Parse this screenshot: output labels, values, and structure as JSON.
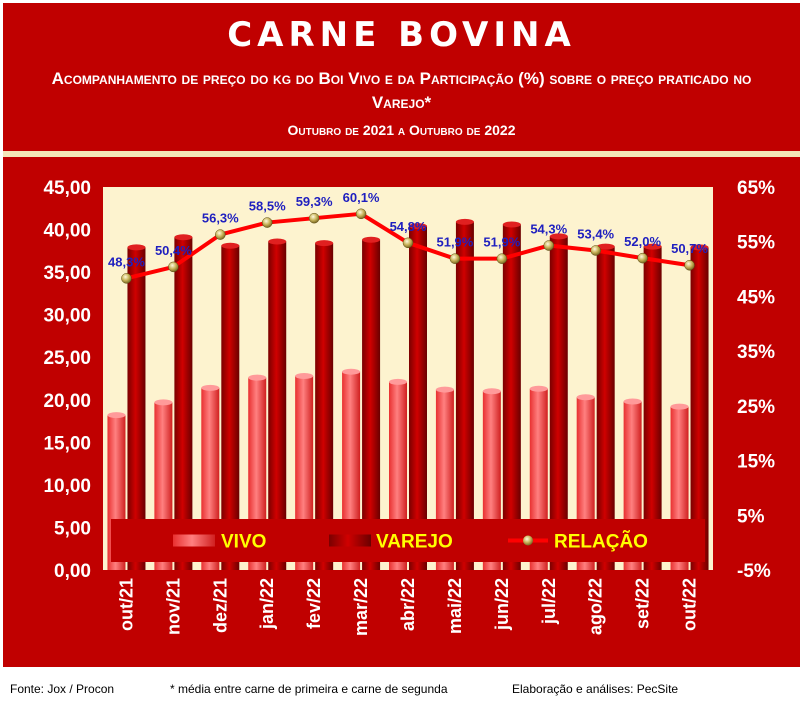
{
  "header": {
    "title": "CARNE BOVINA",
    "subtitle": "Acompanhamento de preço do kg do Boi Vivo e da Participação (%) sobre o preço praticado no Varejo*",
    "period": "Outubro de 2021 a Outubro de 2022"
  },
  "footer": {
    "source": "Fonte: Jox / Procon",
    "note": "* média entre carne de primeira e carne de segunda",
    "credit": "Elaboração e análises: PecSite"
  },
  "colors": {
    "background": "#c00000",
    "plot_area": "#fdf3cf",
    "vivo": "#ff5050",
    "varejo": "#b00000",
    "relacao_line": "#ff0000",
    "relacao_marker": "#d4c060",
    "data_label": "#1f1fbf",
    "legend_text": "#ffff00"
  },
  "chart_data": {
    "type": "bar",
    "categories": [
      "out/21",
      "nov/21",
      "dez/21",
      "jan/22",
      "fev/22",
      "mar/22",
      "abr/22",
      "mai/22",
      "jun/22",
      "jul/22",
      "ago/22",
      "set/22",
      "out/22"
    ],
    "series": [
      {
        "name": "VIVO",
        "type": "bar",
        "axis": "left",
        "values": [
          18.2,
          19.7,
          21.4,
          22.6,
          22.8,
          23.3,
          22.1,
          21.2,
          21.0,
          21.3,
          20.3,
          19.8,
          19.2
        ]
      },
      {
        "name": "VAREJO",
        "type": "bar",
        "axis": "left",
        "values": [
          37.9,
          39.1,
          38.1,
          38.6,
          38.4,
          38.8,
          40.4,
          40.9,
          40.6,
          39.2,
          38.0,
          38.0,
          37.9
        ]
      },
      {
        "name": "RELAÇÃO",
        "type": "line",
        "axis": "right",
        "values": [
          48.3,
          50.4,
          56.3,
          58.5,
          59.3,
          60.1,
          54.8,
          51.9,
          51.9,
          54.3,
          53.4,
          52.0,
          50.7
        ],
        "labels": [
          "48,3%",
          "50,4%",
          "56,3%",
          "58,5%",
          "59,3%",
          "60,1%",
          "54,8%",
          "51,9%",
          "51,9%",
          "54,3%",
          "53,4%",
          "52,0%",
          "50,7%"
        ]
      }
    ],
    "ylim": [
      0,
      45
    ],
    "y_ticks": [
      "0,00",
      "5,00",
      "10,00",
      "15,00",
      "20,00",
      "25,00",
      "30,00",
      "35,00",
      "40,00",
      "45,00"
    ],
    "y2lim": [
      -5,
      65
    ],
    "y2_ticks": [
      "-5%",
      "5%",
      "15%",
      "25%",
      "35%",
      "45%",
      "55%",
      "65%"
    ],
    "legend": [
      "VIVO",
      "VAREJO",
      "RELAÇÃO"
    ],
    "legend_position": "bottom inside plot",
    "grid": false
  }
}
